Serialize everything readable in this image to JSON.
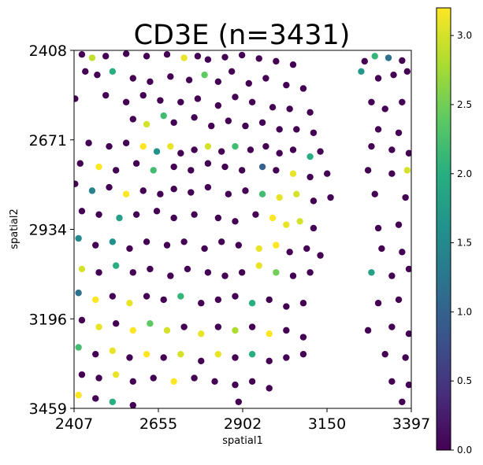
{
  "chart_data": {
    "type": "scatter",
    "title": "CD3E (n=3431)",
    "xlabel": "spatial1",
    "ylabel": "spatial2",
    "xlim": [
      2407,
      3397
    ],
    "ylim": [
      2408,
      3459
    ],
    "y_inverted": true,
    "x_ticks": [
      "2407",
      "2655",
      "2902",
      "3150",
      "3397"
    ],
    "y_ticks": [
      "2408",
      "2671",
      "2934",
      "3196",
      "3459"
    ],
    "colorbar": {
      "colormap": "viridis",
      "range": [
        0,
        3.2
      ],
      "ticks": [
        "0.0",
        "0.5",
        "1.0",
        "1.5",
        "2.0",
        "2.5",
        "3.0"
      ]
    },
    "n_points": 3431,
    "sampled_points_note": "",
    "points": [
      [
        2430,
        2420,
        0.0
      ],
      [
        2460,
        2430,
        2.9
      ],
      [
        2500,
        2425,
        0.0
      ],
      [
        2560,
        2418,
        0.0
      ],
      [
        2620,
        2425,
        0.0
      ],
      [
        2680,
        2420,
        0.0
      ],
      [
        2730,
        2430,
        3.1
      ],
      [
        2770,
        2425,
        0.0
      ],
      [
        2800,
        2435,
        0.0
      ],
      [
        2850,
        2428,
        0.0
      ],
      [
        2900,
        2422,
        0.0
      ],
      [
        2950,
        2432,
        0.0
      ],
      [
        3000,
        2440,
        0.0
      ],
      [
        3050,
        2450,
        0.0
      ],
      [
        3260,
        2440,
        0.0
      ],
      [
        3290,
        2425,
        2.1
      ],
      [
        3330,
        2430,
        1.2
      ],
      [
        3370,
        2438,
        0.0
      ],
      [
        2440,
        2470,
        0.0
      ],
      [
        2475,
        2480,
        0.0
      ],
      [
        2520,
        2470,
        2.0
      ],
      [
        2580,
        2490,
        0.0
      ],
      [
        2630,
        2500,
        0.0
      ],
      [
        2690,
        2485,
        0.0
      ],
      [
        2745,
        2495,
        0.0
      ],
      [
        2790,
        2480,
        2.4
      ],
      [
        2830,
        2500,
        0.0
      ],
      [
        2870,
        2470,
        0.0
      ],
      [
        2920,
        2505,
        0.0
      ],
      [
        2970,
        2490,
        0.0
      ],
      [
        3030,
        2510,
        0.0
      ],
      [
        3080,
        2520,
        0.0
      ],
      [
        3250,
        2470,
        1.7
      ],
      [
        3300,
        2490,
        0.0
      ],
      [
        3345,
        2480,
        0.0
      ],
      [
        3385,
        2470,
        0.0
      ],
      [
        2410,
        2550,
        0.0
      ],
      [
        2500,
        2540,
        0.0
      ],
      [
        2560,
        2560,
        0.0
      ],
      [
        2610,
        2540,
        0.0
      ],
      [
        2660,
        2555,
        0.0
      ],
      [
        2720,
        2560,
        0.0
      ],
      [
        2770,
        2550,
        0.0
      ],
      [
        2830,
        2570,
        0.0
      ],
      [
        2880,
        2545,
        0.0
      ],
      [
        2930,
        2560,
        0.0
      ],
      [
        2990,
        2575,
        0.0
      ],
      [
        3040,
        2580,
        0.0
      ],
      [
        3100,
        2590,
        0.0
      ],
      [
        3280,
        2560,
        0.0
      ],
      [
        3320,
        2580,
        0.0
      ],
      [
        3370,
        2560,
        0.0
      ],
      [
        2580,
        2610,
        0.0
      ],
      [
        2620,
        2625,
        3.0
      ],
      [
        2670,
        2600,
        2.2
      ],
      [
        2700,
        2620,
        0.0
      ],
      [
        2760,
        2605,
        0.0
      ],
      [
        2810,
        2630,
        0.0
      ],
      [
        2860,
        2615,
        0.0
      ],
      [
        2910,
        2630,
        0.0
      ],
      [
        2960,
        2620,
        0.0
      ],
      [
        3010,
        2640,
        0.0
      ],
      [
        3060,
        2640,
        0.0
      ],
      [
        3110,
        2650,
        0.0
      ],
      [
        3300,
        2640,
        0.0
      ],
      [
        3360,
        2650,
        0.0
      ],
      [
        2450,
        2680,
        0.0
      ],
      [
        2510,
        2690,
        0.0
      ],
      [
        2560,
        2680,
        0.0
      ],
      [
        2610,
        2690,
        3.2
      ],
      [
        2650,
        2705,
        1.6
      ],
      [
        2690,
        2690,
        3.1
      ],
      [
        2720,
        2710,
        0.0
      ],
      [
        2760,
        2700,
        0.0
      ],
      [
        2800,
        2690,
        3.0
      ],
      [
        2840,
        2705,
        0.0
      ],
      [
        2880,
        2690,
        2.2
      ],
      [
        2925,
        2700,
        0.0
      ],
      [
        2970,
        2690,
        0.0
      ],
      [
        3010,
        2710,
        0.0
      ],
      [
        3050,
        2700,
        0.0
      ],
      [
        3100,
        2720,
        2.0
      ],
      [
        3130,
        2705,
        0.0
      ],
      [
        3280,
        2690,
        0.0
      ],
      [
        3340,
        2700,
        0.0
      ],
      [
        3390,
        2710,
        0.0
      ],
      [
        2425,
        2740,
        0.0
      ],
      [
        2480,
        2750,
        3.2
      ],
      [
        2530,
        2760,
        0.0
      ],
      [
        2590,
        2740,
        0.0
      ],
      [
        2640,
        2760,
        2.2
      ],
      [
        2700,
        2750,
        0.0
      ],
      [
        2750,
        2760,
        0.0
      ],
      [
        2800,
        2740,
        0.0
      ],
      [
        2850,
        2750,
        0.0
      ],
      [
        2900,
        2760,
        0.0
      ],
      [
        2960,
        2750,
        1.0
      ],
      [
        3000,
        2760,
        0.0
      ],
      [
        3050,
        2770,
        3.1
      ],
      [
        3100,
        2780,
        0.0
      ],
      [
        3150,
        2770,
        0.0
      ],
      [
        3270,
        2760,
        0.0
      ],
      [
        3340,
        2770,
        0.0
      ],
      [
        3385,
        2760,
        3.0
      ],
      [
        2410,
        2800,
        0.0
      ],
      [
        2460,
        2820,
        1.4
      ],
      [
        2510,
        2810,
        0.0
      ],
      [
        2560,
        2830,
        3.2
      ],
      [
        2610,
        2820,
        0.0
      ],
      [
        2660,
        2830,
        0.0
      ],
      [
        2700,
        2815,
        0.0
      ],
      [
        2750,
        2825,
        0.0
      ],
      [
        2800,
        2810,
        0.0
      ],
      [
        2860,
        2830,
        0.0
      ],
      [
        2910,
        2820,
        0.0
      ],
      [
        2960,
        2830,
        2.2
      ],
      [
        3010,
        2840,
        3.1
      ],
      [
        3060,
        2830,
        3.0
      ],
      [
        3110,
        2850,
        0.0
      ],
      [
        3160,
        2840,
        0.0
      ],
      [
        3290,
        2830,
        0.0
      ],
      [
        3380,
        2840,
        0.0
      ],
      [
        2430,
        2880,
        0.0
      ],
      [
        2480,
        2890,
        0.0
      ],
      [
        2540,
        2900,
        1.8
      ],
      [
        2590,
        2890,
        0.0
      ],
      [
        2650,
        2880,
        0.0
      ],
      [
        2700,
        2900,
        0.0
      ],
      [
        2760,
        2890,
        0.0
      ],
      [
        2830,
        2900,
        0.0
      ],
      [
        2880,
        2910,
        0.0
      ],
      [
        2940,
        2890,
        0.0
      ],
      [
        2990,
        2900,
        3.2
      ],
      [
        3030,
        2920,
        3.1
      ],
      [
        3070,
        2910,
        3.0
      ],
      [
        3110,
        2930,
        0.0
      ],
      [
        3300,
        2930,
        0.0
      ],
      [
        3360,
        2920,
        0.0
      ],
      [
        2420,
        2960,
        1.5
      ],
      [
        2470,
        2980,
        0.0
      ],
      [
        2520,
        2970,
        1.6
      ],
      [
        2570,
        2990,
        0.0
      ],
      [
        2620,
        2970,
        0.0
      ],
      [
        2680,
        2980,
        0.0
      ],
      [
        2730,
        2970,
        0.0
      ],
      [
        2790,
        2990,
        0.0
      ],
      [
        2840,
        2970,
        0.0
      ],
      [
        2890,
        2980,
        0.0
      ],
      [
        2950,
        2990,
        3.1
      ],
      [
        3000,
        2980,
        3.2
      ],
      [
        3040,
        3000,
        0.0
      ],
      [
        3090,
        2990,
        0.0
      ],
      [
        3130,
        3010,
        0.0
      ],
      [
        3310,
        2990,
        0.0
      ],
      [
        3370,
        3000,
        0.0
      ],
      [
        2430,
        3050,
        3.0
      ],
      [
        2480,
        3060,
        0.0
      ],
      [
        2530,
        3040,
        2.0
      ],
      [
        2580,
        3060,
        0.0
      ],
      [
        2630,
        3050,
        0.0
      ],
      [
        2690,
        3070,
        0.0
      ],
      [
        2740,
        3050,
        0.0
      ],
      [
        2800,
        3060,
        0.0
      ],
      [
        2850,
        3070,
        0.0
      ],
      [
        2900,
        3060,
        0.0
      ],
      [
        2950,
        3040,
        3.1
      ],
      [
        3000,
        3060,
        2.5
      ],
      [
        3050,
        3070,
        0.0
      ],
      [
        3100,
        3060,
        0.0
      ],
      [
        3280,
        3060,
        1.8
      ],
      [
        3340,
        3070,
        0.0
      ],
      [
        3390,
        3050,
        0.0
      ],
      [
        2420,
        3120,
        1.2
      ],
      [
        2470,
        3140,
        3.2
      ],
      [
        2520,
        3130,
        0.0
      ],
      [
        2570,
        3150,
        3.1
      ],
      [
        2620,
        3130,
        0.0
      ],
      [
        2670,
        3140,
        0.0
      ],
      [
        2720,
        3130,
        2.1
      ],
      [
        2780,
        3150,
        0.0
      ],
      [
        2830,
        3140,
        0.0
      ],
      [
        2880,
        3130,
        0.0
      ],
      [
        2930,
        3150,
        2.0
      ],
      [
        2980,
        3140,
        0.0
      ],
      [
        3030,
        3160,
        0.0
      ],
      [
        3080,
        3150,
        0.0
      ],
      [
        3300,
        3150,
        0.0
      ],
      [
        3360,
        3140,
        0.0
      ],
      [
        2430,
        3200,
        0.0
      ],
      [
        2480,
        3220,
        3.1
      ],
      [
        2530,
        3210,
        0.0
      ],
      [
        2580,
        3230,
        3.2
      ],
      [
        2630,
        3210,
        2.4
      ],
      [
        2680,
        3230,
        3.0
      ],
      [
        2730,
        3220,
        0.0
      ],
      [
        2780,
        3240,
        3.1
      ],
      [
        2830,
        3220,
        0.0
      ],
      [
        2880,
        3230,
        2.8
      ],
      [
        2930,
        3220,
        0.0
      ],
      [
        2980,
        3240,
        3.2
      ],
      [
        3030,
        3230,
        0.0
      ],
      [
        3080,
        3250,
        0.0
      ],
      [
        3270,
        3230,
        0.0
      ],
      [
        3340,
        3220,
        0.0
      ],
      [
        3390,
        3240,
        0.0
      ],
      [
        2420,
        3280,
        2.2
      ],
      [
        2470,
        3300,
        0.0
      ],
      [
        2520,
        3290,
        3.1
      ],
      [
        2570,
        3310,
        0.0
      ],
      [
        2620,
        3300,
        3.2
      ],
      [
        2670,
        3310,
        0.0
      ],
      [
        2720,
        3300,
        3.0
      ],
      [
        2780,
        3320,
        0.0
      ],
      [
        2830,
        3300,
        3.1
      ],
      [
        2880,
        3310,
        0.0
      ],
      [
        2930,
        3300,
        2.0
      ],
      [
        2980,
        3320,
        0.0
      ],
      [
        3030,
        3310,
        0.0
      ],
      [
        3080,
        3300,
        0.0
      ],
      [
        3320,
        3300,
        0.0
      ],
      [
        3380,
        3310,
        0.0
      ],
      [
        2430,
        3360,
        0.0
      ],
      [
        2480,
        3370,
        0.0
      ],
      [
        2530,
        3360,
        3.1
      ],
      [
        2580,
        3380,
        0.0
      ],
      [
        2640,
        3370,
        0.0
      ],
      [
        2700,
        3380,
        3.2
      ],
      [
        2760,
        3370,
        0.0
      ],
      [
        2820,
        3380,
        0.0
      ],
      [
        2880,
        3390,
        0.0
      ],
      [
        2930,
        3380,
        0.0
      ],
      [
        2980,
        3400,
        0.0
      ],
      [
        3340,
        3380,
        0.0
      ],
      [
        3390,
        3390,
        0.0
      ],
      [
        2420,
        3420,
        3.2
      ],
      [
        2470,
        3430,
        0.0
      ],
      [
        2520,
        3440,
        2.0
      ],
      [
        2580,
        3450,
        0.0
      ],
      [
        2890,
        3440,
        0.0
      ],
      [
        3370,
        3440,
        0.0
      ]
    ]
  }
}
